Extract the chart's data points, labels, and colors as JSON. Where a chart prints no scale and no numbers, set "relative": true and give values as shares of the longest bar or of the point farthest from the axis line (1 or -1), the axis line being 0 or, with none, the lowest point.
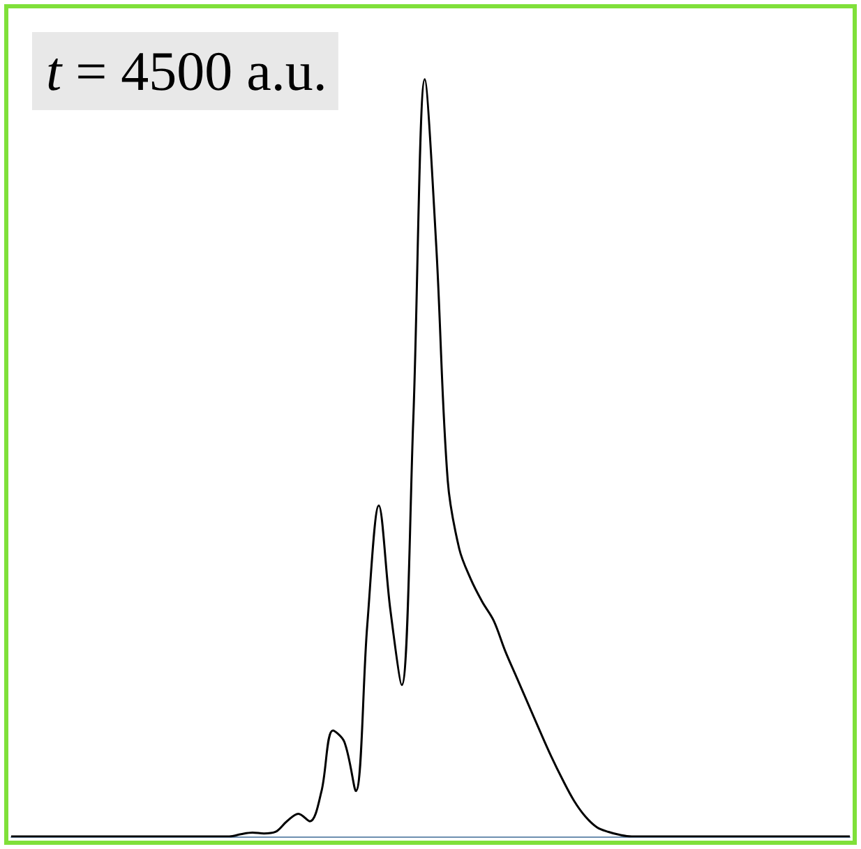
{
  "chart_data": {
    "type": "line",
    "relative": true,
    "color": "#000000",
    "tick_labels": false,
    "annotations": [
      "t = 4500 a.u."
    ],
    "categories": [
      null,
      null,
      null,
      null,
      null,
      null,
      null,
      null,
      null,
      null,
      null,
      null,
      null,
      null,
      null,
      null,
      null,
      null,
      null,
      null,
      null,
      null,
      null,
      null,
      null,
      null,
      null,
      null,
      null,
      null,
      null,
      null,
      null,
      null,
      null,
      null,
      null,
      null,
      null,
      null,
      null,
      null,
      null,
      null,
      null,
      null,
      null,
      null,
      null,
      null,
      null,
      null,
      null,
      null,
      null,
      null,
      null,
      null,
      null,
      null,
      null,
      null,
      null,
      null,
      null,
      null,
      null,
      null,
      null,
      null,
      null,
      null,
      null,
      null
    ],
    "values": [
      0,
      0,
      0,
      0,
      0,
      0,
      0,
      0,
      0,
      0,
      0,
      0,
      0,
      0,
      0,
      0,
      0,
      0,
      0,
      0,
      0.003,
      0.005,
      0.004,
      0.006,
      0.02,
      0.03,
      0.02,
      0.059,
      0.14,
      0.125,
      0.06,
      0.28,
      0.437,
      0.3,
      0.2,
      0.55,
      1,
      0.78,
      0.47,
      0.38,
      0.34,
      0.31,
      0.285,
      0.245,
      0.21,
      0.175,
      0.14,
      0.106,
      0.075,
      0.047,
      0.026,
      0.012,
      0.006,
      0.002,
      0,
      0,
      0,
      0,
      0,
      0,
      0,
      0,
      0,
      0,
      0,
      0,
      0,
      0,
      0,
      0,
      0,
      0,
      0,
      0
    ]
  }
}
